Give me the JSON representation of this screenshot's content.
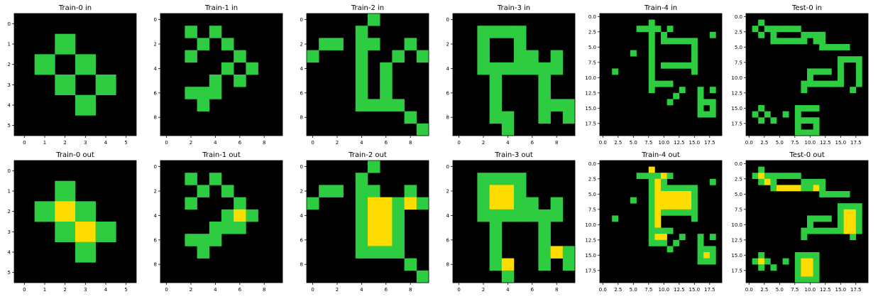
{
  "colors": {
    "background": "#000000",
    "green": "#2ecc40",
    "yellow": "#ffdc00",
    "line": "#ffffff"
  },
  "rows": [
    {
      "panels": [
        {
          "title": "Train-0 in",
          "size": 6,
          "ticks": [
            "0",
            "1",
            "2",
            "3",
            "4",
            "5"
          ],
          "tick_values": [
            0,
            1,
            2,
            3,
            4,
            5
          ],
          "grid": [
            "000000",
            "002000",
            "020200",
            "002020",
            "000200",
            "000000"
          ]
        },
        {
          "title": "Train-1 in",
          "size": 10,
          "ticks": [
            "0",
            "2",
            "4",
            "6",
            "8"
          ],
          "tick_values": [
            0,
            2,
            4,
            6,
            8
          ],
          "grid": [
            "0000000000",
            "0020200000",
            "0002020000",
            "0020002000",
            "0000020200",
            "0000202000",
            "0022200000",
            "0002000000",
            "0000000000",
            "0000000000"
          ]
        },
        {
          "title": "Train-2 in",
          "size": 10,
          "ticks": [
            "0",
            "2",
            "4",
            "6",
            "8"
          ],
          "tick_values": [
            0,
            2,
            4,
            6,
            8
          ],
          "grid": [
            "0000020000",
            "0000200000",
            "0220220020",
            "2000200202",
            "0000202000",
            "0000202000",
            "0000202000",
            "0000222200",
            "0000000020",
            "0000000002"
          ]
        },
        {
          "title": "Train-3 in",
          "size": 10,
          "ticks": [
            "0",
            "2",
            "4",
            "6",
            "8"
          ],
          "tick_values": [
            0,
            2,
            4,
            6,
            8
          ],
          "grid": [
            "0000000000",
            "0022220000",
            "0020020000",
            "0020022020",
            "0022222220",
            "0002000200",
            "0002000200",
            "0002000222",
            "0002200202",
            "0000200000"
          ]
        },
        {
          "title": "Train-4 in",
          "size": 20,
          "ticks": [
            "0.0",
            "2.5",
            "5.0",
            "7.5",
            "10.0",
            "12.5",
            "15.0",
            "17.5"
          ],
          "tick_values": [
            0,
            2.5,
            5,
            7.5,
            10,
            12.5,
            15,
            17.5
          ],
          "grid": [
            "00000000000000000000",
            "00000000200000000000",
            "00000022220200000000",
            "00000000202000000020",
            "00000000202222220000",
            "00000000200000020000",
            "00000200200000020000",
            "00000000200000020000",
            "00000000202222220000",
            "00200000200000020000",
            "00000000200000000000",
            "00000000222200000000",
            "00000000200002002020",
            "00000000000020002000",
            "00000000000200002220",
            "00000000000000002020",
            "00000000000000002220",
            "00000000000000000000",
            "00000000000000000000",
            "00000000000000000000"
          ]
        },
        {
          "title": "Test-0 in",
          "size": 20,
          "ticks": [
            "0.0",
            "2.5",
            "5.0",
            "7.5",
            "10.0",
            "12.5",
            "15.0",
            "17.5"
          ],
          "tick_values": [
            0,
            2.5,
            5,
            7.5,
            10,
            12.5,
            15,
            17.5
          ],
          "grid": [
            "00000000000000000000",
            "00200000000000000000",
            "02022222200000000000",
            "00202000022220000000",
            "00002222220220000000",
            "00000000000022222000",
            "00000000000000000000",
            "00000000000000022220",
            "00000000000000020020",
            "00000000002222020020",
            "00000000002000020020",
            "00000000022222220020",
            "00000000020000000200",
            "00000000000000000000",
            "00000000000000000000",
            "00200000222200000000",
            "02020020200000000000",
            "00202000222200000000",
            "00000000200200000000",
            "00000000222200000000"
          ]
        }
      ]
    },
    {
      "panels": [
        {
          "title": "Train-0 out",
          "size": 6,
          "ticks": [
            "0",
            "1",
            "2",
            "3",
            "4",
            "5"
          ],
          "tick_values": [
            0,
            1,
            2,
            3,
            4,
            5
          ],
          "grid": [
            "000000",
            "002000",
            "024200",
            "002420",
            "000200",
            "000000"
          ]
        },
        {
          "title": "Train-1 out",
          "size": 10,
          "ticks": [
            "0",
            "2",
            "4",
            "6",
            "8"
          ],
          "tick_values": [
            0,
            2,
            4,
            6,
            8
          ],
          "grid": [
            "0000000000",
            "0020200000",
            "0002020000",
            "0020002000",
            "0000024200",
            "0000222000",
            "0022200000",
            "0002000000",
            "0000000000",
            "0000000000"
          ]
        },
        {
          "title": "Train-2 out",
          "size": 10,
          "ticks": [
            "0",
            "2",
            "4",
            "6",
            "8"
          ],
          "tick_values": [
            0,
            2,
            4,
            6,
            8
          ],
          "grid": [
            "0000020000",
            "0000200000",
            "0220220020",
            "2000244242",
            "0000244200",
            "0000244200",
            "0000244200",
            "0000222200",
            "0000000020",
            "0000000002"
          ]
        },
        {
          "title": "Train-3 out",
          "size": 10,
          "ticks": [
            "0",
            "2",
            "4",
            "6",
            "8"
          ],
          "tick_values": [
            0,
            2,
            4,
            6,
            8
          ],
          "grid": [
            "0000000000",
            "0022220000",
            "0024420000",
            "0024422020",
            "0022222220",
            "0002000200",
            "0002000200",
            "0002000242",
            "0002400202",
            "0000200000"
          ]
        },
        {
          "title": "Train-4 out",
          "size": 20,
          "ticks": [
            "0.0",
            "2.5",
            "5.0",
            "7.5",
            "10.0",
            "12.5",
            "15.0",
            "17.5"
          ],
          "tick_values": [
            0,
            2.5,
            5,
            7.5,
            10,
            12.5,
            15,
            17.5
          ],
          "grid": [
            "00000000000000000000",
            "00000000400000000000",
            "00000022224200000000",
            "00000000242000000020",
            "00000000242222220000",
            "00000000244444420000",
            "00000200244444420000",
            "00000000244444420000",
            "00000000242222220000",
            "00200000240000020000",
            "00000000240000000000",
            "00000000222200000000",
            "00000000244002002020",
            "00000000222020002000",
            "00000000000200002220",
            "00000000000000002420",
            "00000000000000002220",
            "00000000000000000000",
            "00000000000000000000",
            "00000000000000000000"
          ]
        },
        {
          "title": "Test-0 out",
          "size": 20,
          "ticks": [
            "0.0",
            "2.5",
            "5.0",
            "7.5",
            "10.0",
            "12.5",
            "15.0",
            "17.5"
          ],
          "tick_values": [
            0,
            2.5,
            5,
            7.5,
            10,
            12.5,
            15,
            17.5
          ],
          "grid": [
            "00000000000000000000",
            "00200000000000000000",
            "02422222200000000000",
            "00242000022220000000",
            "00002444422420000000",
            "00000000000022222000",
            "00000000000000000000",
            "00000000000000022220",
            "00000000000000024420",
            "00000000002222024420",
            "00000000002000024420",
            "00000000022222224420",
            "00000000020000000200",
            "00000000000000000000",
            "00000000000000000000",
            "00200000222200000000",
            "02420020244200000000",
            "00202000244200000000",
            "00000000244200000000",
            "00000000222200000000"
          ]
        }
      ]
    }
  ]
}
